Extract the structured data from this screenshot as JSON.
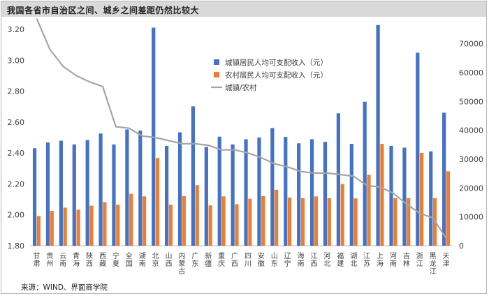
{
  "title": "我国各省市自治区之间、城乡之间差距仍然比较大",
  "source": "来源：WIND、界面商学院",
  "chart_data": {
    "type": "bar",
    "categories": [
      "甘肃",
      "贵州",
      "云南",
      "青海",
      "陕西",
      "西藏",
      "宁夏",
      "全国",
      "湖南",
      "北京",
      "山西",
      "内蒙古",
      "广东",
      "新疆",
      "重庆",
      "广西",
      "四川",
      "安徽",
      "山东",
      "辽宁",
      "海南",
      "江西",
      "河北",
      "福建",
      "湖北",
      "江苏",
      "上海",
      "河南",
      "吉林",
      "浙江",
      "黑龙江",
      "天津"
    ],
    "series": [
      {
        "name": "城镇居民人均可支配收入（元）",
        "color": "#4472c4",
        "axis": "right",
        "values": [
          33800,
          35800,
          36400,
          35100,
          36600,
          38900,
          35100,
          40300,
          39900,
          75600,
          34600,
          39300,
          48300,
          34200,
          37800,
          35100,
          36900,
          37500,
          40800,
          37700,
          35500,
          36900,
          36000,
          45900,
          35300,
          49900,
          76500,
          34600,
          34000,
          66900,
          32700,
          46100
        ]
      },
      {
        "name": "农村居民人均可支配收入（元）",
        "color": "#ed7d31",
        "axis": "right",
        "values": [
          10300,
          12100,
          13200,
          12500,
          13900,
          15100,
          14200,
          18000,
          17100,
          30400,
          14200,
          17200,
          21000,
          14000,
          17100,
          14400,
          16300,
          17200,
          19400,
          16700,
          16500,
          17100,
          16500,
          21400,
          16400,
          24600,
          35300,
          16500,
          16500,
          32200,
          16500,
          25800
        ]
      },
      {
        "name": "城镇/农村",
        "color": "#a5a5a5",
        "axis": "left",
        "values": [
          3.27,
          3.07,
          2.96,
          2.9,
          2.86,
          2.83,
          2.57,
          2.56,
          2.51,
          2.5,
          2.48,
          2.46,
          2.46,
          2.45,
          2.42,
          2.42,
          2.4,
          2.37,
          2.33,
          2.31,
          2.28,
          2.27,
          2.27,
          2.26,
          2.25,
          2.19,
          2.18,
          2.14,
          2.07,
          2.01,
          1.98,
          1.85
        ]
      }
    ],
    "y_left": {
      "min": 1.8,
      "max": 3.2,
      "ticks": [
        "1.80",
        "2.00",
        "2.20",
        "2.40",
        "2.60",
        "2.80",
        "3.00",
        "3.20"
      ]
    },
    "y_right": {
      "min": 0,
      "max": 75000,
      "ticks": [
        "0",
        "10000",
        "20000",
        "30000",
        "40000",
        "50000",
        "60000",
        "70000"
      ]
    },
    "legend_position": "top-right",
    "grid": false
  }
}
